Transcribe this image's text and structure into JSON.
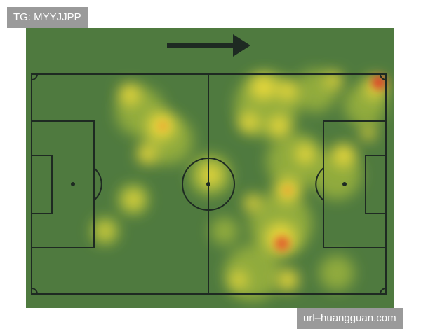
{
  "watermark_top": "TG: MYYJJPP",
  "watermark_bottom": "url–huangguan.com"
}
